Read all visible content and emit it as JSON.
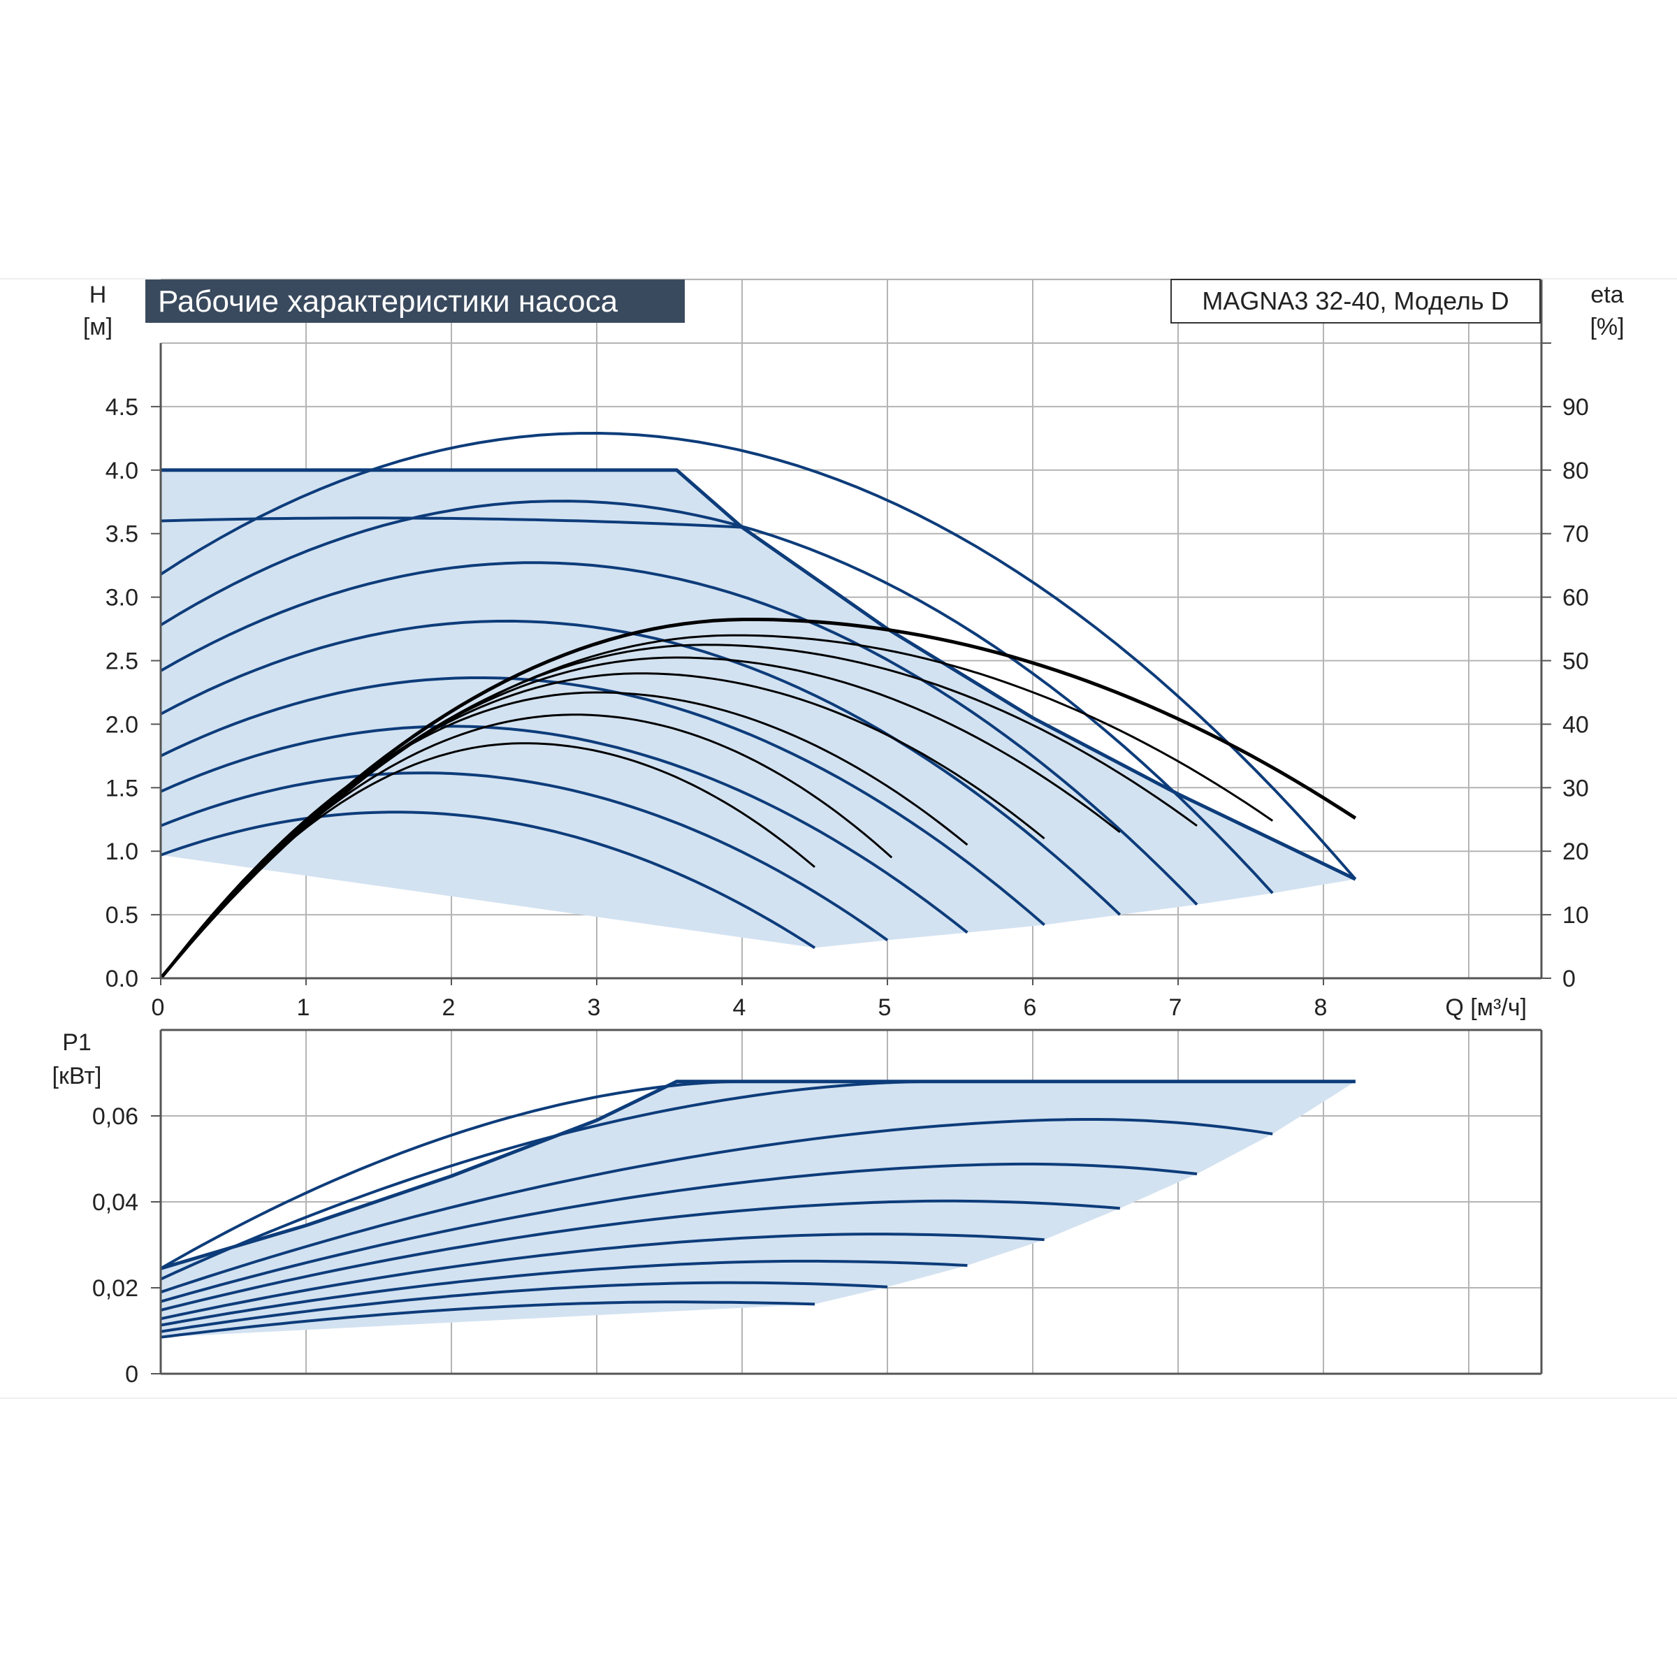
{
  "colors": {
    "background": "#ffffff",
    "grid": "#b4b4b4",
    "frame": "#555555",
    "fill": "#d3e2f1",
    "curve": "#0d3c7a",
    "efficiency": "#000000",
    "title_bg": "#3a4a5e",
    "title_text": "#ffffff"
  },
  "header": {
    "title": "Рабочие характеристики насоса",
    "model": "MAGNA3 32-40, Модель D"
  },
  "chart_data": [
    {
      "type": "line",
      "name": "head-efficiency",
      "xlabel": "Q [м³/ч]",
      "ylabel_line1": "H",
      "ylabel_line2": "[м]",
      "y2label_line1": "eta",
      "y2label_line2": "[%]",
      "xlim": [
        0,
        9.5
      ],
      "ylim": [
        0,
        5
      ],
      "y2lim": [
        0,
        100
      ],
      "grid": true,
      "x_ticks": [
        "0",
        "1",
        "2",
        "3",
        "4",
        "5",
        "6",
        "7",
        "8"
      ],
      "y_ticks": [
        "0.0",
        "0.5",
        "1.0",
        "1.5",
        "2.0",
        "2.5",
        "3.0",
        "3.5",
        "4.0",
        "4.5"
      ],
      "y2_ticks": [
        "0",
        "10",
        "20",
        "30",
        "40",
        "50",
        "60",
        "70",
        "80",
        "90"
      ],
      "envelope": {
        "upper": [
          [
            0,
            4.0
          ],
          [
            3.55,
            4.0
          ],
          [
            4.0,
            3.55
          ],
          [
            5.0,
            2.75
          ],
          [
            6.0,
            2.05
          ],
          [
            7.0,
            1.45
          ],
          [
            8.22,
            0.78
          ]
        ],
        "lower": [
          [
            0,
            0.97
          ],
          [
            4.5,
            0.24
          ],
          [
            5.0,
            0.3
          ],
          [
            5.55,
            0.36
          ],
          [
            6.08,
            0.42
          ],
          [
            6.6,
            0.5
          ],
          [
            7.13,
            0.58
          ],
          [
            7.65,
            0.67
          ],
          [
            8.22,
            0.78
          ]
        ]
      },
      "head_curves": [
        {
          "h0": 0.97,
          "qmax": 4.5,
          "hend": 0.24
        },
        {
          "h0": 1.2,
          "qmax": 5.0,
          "hend": 0.3
        },
        {
          "h0": 1.47,
          "qmax": 5.55,
          "hend": 0.36
        },
        {
          "h0": 1.75,
          "qmax": 6.08,
          "hend": 0.42
        },
        {
          "h0": 2.08,
          "qmax": 6.6,
          "hend": 0.5
        },
        {
          "h0": 2.42,
          "qmax": 7.13,
          "hend": 0.58
        },
        {
          "h0": 2.78,
          "qmax": 7.65,
          "hend": 0.67
        },
        {
          "h0": 3.18,
          "qmax": 8.22,
          "hend": 0.78
        },
        {
          "h0": 3.6,
          "qmax": 4.0,
          "hend": 3.55
        }
      ],
      "efficiency_curves": [
        {
          "peak_q": 2.5,
          "peak_eta": 37,
          "qmax": 4.5,
          "eta_end": 17.5
        },
        {
          "peak_q": 2.85,
          "peak_eta": 41.5,
          "qmax": 5.03,
          "eta_end": 19
        },
        {
          "peak_q": 3.0,
          "peak_eta": 45,
          "qmax": 5.55,
          "eta_end": 21
        },
        {
          "peak_q": 3.3,
          "peak_eta": 48,
          "qmax": 6.08,
          "eta_end": 22
        },
        {
          "peak_q": 3.55,
          "peak_eta": 50.5,
          "qmax": 6.6,
          "eta_end": 23
        },
        {
          "peak_q": 3.75,
          "peak_eta": 52.5,
          "qmax": 7.13,
          "eta_end": 24
        },
        {
          "peak_q": 3.95,
          "peak_eta": 54,
          "qmax": 7.65,
          "eta_end": 24.8
        },
        {
          "peak_q": 4.05,
          "peak_eta": 56.5,
          "qmax": 8.22,
          "eta_end": 25.2
        }
      ]
    },
    {
      "type": "line",
      "name": "power",
      "xlabel": "",
      "ylabel_line1": "P1",
      "ylabel_line2": "[кВт]",
      "xlim": [
        0,
        9.5
      ],
      "ylim": [
        0,
        0.08
      ],
      "grid": true,
      "y_ticks": [
        "0",
        "0,02",
        "0,04",
        "0,06"
      ],
      "y_tick_values": [
        0,
        0.02,
        0.04,
        0.06
      ],
      "envelope": {
        "upper": [
          [
            0,
            0.0245
          ],
          [
            1.0,
            0.0345
          ],
          [
            2.0,
            0.046
          ],
          [
            3.0,
            0.059
          ],
          [
            3.55,
            0.068
          ],
          [
            8.22,
            0.068
          ]
        ],
        "lower": [
          [
            0,
            0.0085
          ],
          [
            4.5,
            0.0162
          ],
          [
            5.0,
            0.0202
          ],
          [
            5.55,
            0.0252
          ],
          [
            6.08,
            0.0312
          ],
          [
            6.6,
            0.0385
          ],
          [
            7.13,
            0.0465
          ],
          [
            7.65,
            0.0558
          ],
          [
            8.22,
            0.068
          ]
        ]
      },
      "power_curves": [
        {
          "p0": 0.0085,
          "peak_q": 3.5,
          "peak_p": 0.0167,
          "qmax": 4.5,
          "pend": 0.0162
        },
        {
          "p0": 0.0098,
          "peak_q": 3.9,
          "peak_p": 0.0212,
          "qmax": 5.0,
          "pend": 0.0202
        },
        {
          "p0": 0.0113,
          "peak_q": 4.4,
          "peak_p": 0.0262,
          "qmax": 5.55,
          "pend": 0.0252
        },
        {
          "p0": 0.0128,
          "peak_q": 4.9,
          "peak_p": 0.0325,
          "qmax": 6.08,
          "pend": 0.0312
        },
        {
          "p0": 0.0148,
          "peak_q": 5.4,
          "peak_p": 0.0402,
          "qmax": 6.6,
          "pend": 0.0385
        },
        {
          "p0": 0.0168,
          "peak_q": 5.95,
          "peak_p": 0.0488,
          "qmax": 7.13,
          "pend": 0.0465
        },
        {
          "p0": 0.019,
          "peak_q": 6.4,
          "peak_p": 0.0592,
          "qmax": 7.65,
          "pend": 0.0558
        },
        {
          "p0": 0.022,
          "peak_q": 5.3,
          "peak_p": 0.068,
          "qmax": 8.22,
          "pend": 0.068
        },
        {
          "p0": 0.0245,
          "peak_q": 4.0,
          "peak_p": 0.068,
          "qmax": 4.0,
          "pend": 0.068
        }
      ]
    }
  ]
}
